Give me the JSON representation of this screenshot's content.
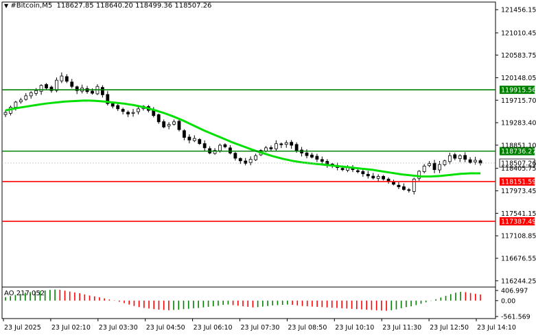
{
  "header": {
    "symbol": "#Bitcoin,M5",
    "open": "118627.85",
    "high": "118640.20",
    "low": "118499.36",
    "close": "118507.26"
  },
  "ao": {
    "label": "AO 217.052",
    "ticks": [
      "406.997",
      "0.00",
      "-561.569"
    ]
  },
  "colors": {
    "bull": "#000000",
    "bear": "#000000",
    "ma": "#00e000",
    "support_line": "#ff0000",
    "resistance_line": "#008000",
    "ao_up": "#008000",
    "ao_down": "#ff0000"
  },
  "chart_data": {
    "type": "candlestick",
    "price_axis": {
      "range": [
        116150,
        121550
      ],
      "ticks": [
        "121456.15",
        "121010.45",
        "120583.75",
        "120148.05",
        "119715.70",
        "119283.40",
        "118851.10",
        "118405.75",
        "117973.45",
        "117541.15",
        "117108.85",
        "116676.55",
        "116244.25"
      ]
    },
    "time_axis": {
      "ticks": [
        "23 Jul 2025",
        "23 Jul 02:10",
        "23 Jul 03:30",
        "23 Jul 04:50",
        "23 Jul 06:10",
        "23 Jul 07:30",
        "23 Jul 08:50",
        "23 Jul 10:10",
        "23 Jul 11:30",
        "23 Jul 12:50",
        "23 Jul 14:10"
      ]
    },
    "levels": [
      {
        "price": 119915.56,
        "label": "119915.56",
        "color": "#008000"
      },
      {
        "price": 118736.27,
        "label": "118736.27",
        "color": "#008000"
      },
      {
        "price": 118151.59,
        "label": "118151.59",
        "color": "#ff0000"
      },
      {
        "price": 117387.49,
        "label": "117387.49",
        "color": "#ff0000"
      }
    ],
    "current_price": {
      "price": 118507.26,
      "label": "118507.26"
    },
    "close_path": [
      119480,
      119580,
      119680,
      119720,
      119800,
      119860,
      119900,
      120000,
      119950,
      119900,
      120100,
      120180,
      120080,
      119980,
      119900,
      119950,
      119880,
      119850,
      119980,
      119820,
      119650,
      119600,
      119550,
      119500,
      119450,
      119480,
      119550,
      119600,
      119520,
      119420,
      119300,
      119200,
      119250,
      119300,
      119150,
      119000,
      118950,
      118980,
      118880,
      118800,
      118700,
      118750,
      118850,
      118820,
      118700,
      118600,
      118550,
      118500,
      118580,
      118650,
      118750,
      118800,
      118780,
      118880,
      118860,
      118900,
      118850,
      118750,
      118700,
      118650,
      118620,
      118580,
      118540,
      118480,
      118450,
      118420,
      118380,
      118420,
      118380,
      118340,
      118300,
      118260,
      118220,
      118250,
      118200,
      118150,
      118100,
      118050,
      118000,
      117980,
      118200,
      118350,
      118450,
      118500,
      118380,
      118480,
      118550,
      118650,
      118600,
      118650,
      118580,
      118520,
      118560,
      118507
    ],
    "ma_path": [
      119520,
      119560,
      119590,
      119620,
      119650,
      119670,
      119690,
      119700,
      119710,
      119705,
      119690,
      119670,
      119650,
      119620,
      119580,
      119530,
      119470,
      119400,
      119320,
      119230,
      119140,
      119060,
      118980,
      118900,
      118830,
      118760,
      118700,
      118640,
      118590,
      118550,
      118520,
      118500,
      118480,
      118460,
      118440,
      118420,
      118400,
      118380,
      118350,
      118320,
      118290,
      118270,
      118250,
      118250,
      118260,
      118280,
      118300,
      118310,
      118310
    ],
    "ao_values": [
      120,
      160,
      200,
      240,
      280,
      300,
      320,
      340,
      360,
      380,
      390,
      380,
      350,
      320,
      290,
      260,
      220,
      180,
      150,
      120,
      80,
      40,
      10,
      -40,
      -90,
      -140,
      -190,
      -230,
      -260,
      -280,
      -300,
      -320,
      -330,
      -340,
      -330,
      -320,
      -300,
      -290,
      -270,
      -260,
      -240,
      -220,
      -200,
      -180,
      -150,
      -140,
      -160,
      -180,
      -200,
      -220,
      -240,
      -230,
      -210,
      -190,
      -170,
      -160,
      -150,
      -140,
      -150,
      -170,
      -190,
      -200,
      -210,
      -220,
      -230,
      -240,
      -250,
      -260,
      -270,
      -280,
      -290,
      -300,
      -310,
      -320,
      -330,
      -340,
      -350,
      -360,
      -340,
      -310,
      -270,
      -230,
      -200,
      -160,
      -110,
      -60,
      -10,
      50,
      110,
      170,
      230,
      280,
      310,
      300,
      270,
      240,
      217
    ]
  }
}
